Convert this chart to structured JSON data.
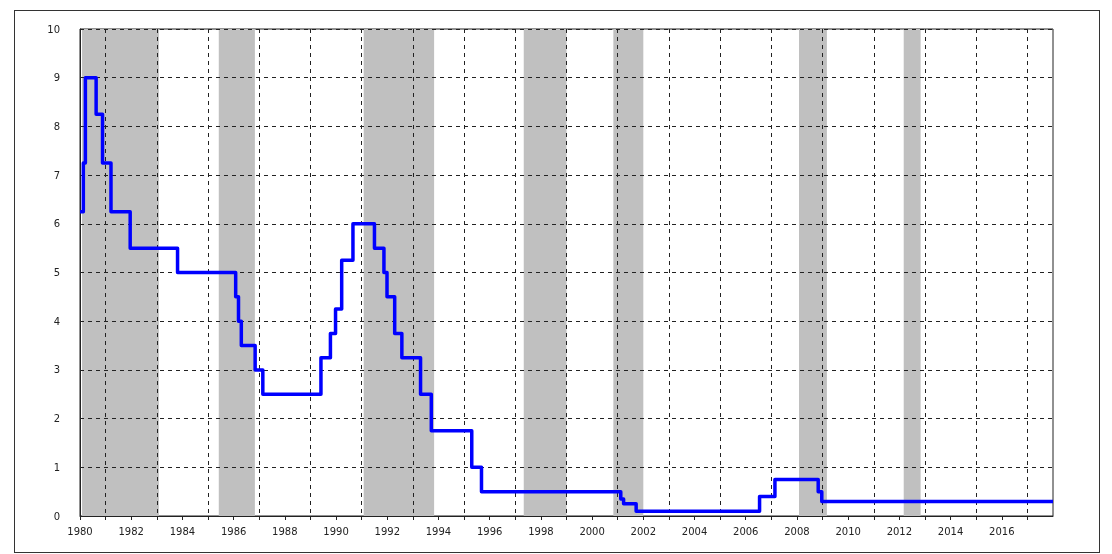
{
  "chart_data": {
    "type": "step",
    "x": [
      1980.0,
      1980.13,
      1980.21,
      1980.63,
      1980.88,
      1981.21,
      1981.96,
      1983.81,
      1986.08,
      1986.19,
      1986.3,
      1986.84,
      1987.14,
      1989.41,
      1989.78,
      1989.98,
      1990.22,
      1990.66,
      1991.5,
      1991.87,
      1991.99,
      1992.29,
      1992.57,
      1993.3,
      1993.72,
      1995.3,
      1995.68,
      2001.12,
      2001.23,
      2001.72,
      2006.54,
      2007.14,
      2008.83,
      2008.97,
      2018.0
    ],
    "series": [
      {
        "color": "#0000ff",
        "values": [
          6.25,
          7.25,
          9.0,
          8.25,
          7.25,
          6.25,
          5.5,
          5.0,
          4.5,
          4.0,
          3.5,
          3.0,
          2.5,
          3.25,
          3.75,
          4.25,
          5.25,
          6.0,
          5.5,
          5.0,
          4.5,
          3.75,
          3.25,
          2.5,
          1.75,
          1.0,
          0.5,
          0.35,
          0.25,
          0.1,
          0.4,
          0.75,
          0.5,
          0.3,
          0.3
        ]
      }
    ],
    "xlim": [
      1980,
      2018
    ],
    "xticks": [
      1980,
      {
        "value": 1981,
        "label": null
      },
      1982,
      {
        "value": 1983,
        "label": null
      },
      1984,
      {
        "value": 1985,
        "label": null
      },
      1986,
      {
        "value": 1987,
        "label": null
      },
      1988,
      {
        "value": 1989,
        "label": null
      },
      1990,
      {
        "value": 1991,
        "label": null
      },
      1992,
      {
        "value": 1993,
        "label": null
      },
      1994,
      {
        "value": 1995,
        "label": null
      },
      1996,
      {
        "value": 1997,
        "label": null
      },
      1998,
      {
        "value": 1999,
        "label": null
      },
      2000,
      {
        "value": 2001,
        "label": null
      },
      2002,
      {
        "value": 2003,
        "label": null
      },
      2004,
      {
        "value": 2005,
        "label": null
      },
      2006,
      {
        "value": 2007,
        "label": null
      },
      2008,
      {
        "value": 2009,
        "label": null
      },
      2010,
      {
        "value": 2011,
        "label": null
      },
      2012,
      {
        "value": 2013,
        "label": null
      },
      2014,
      {
        "value": 2015,
        "label": null
      },
      2016,
      {
        "value": 2017,
        "label": null
      }
    ],
    "ylim": [
      0,
      10
    ],
    "yticks": [
      0,
      1,
      2,
      3,
      4,
      5,
      6,
      7,
      8,
      9,
      10
    ],
    "bands": [
      {
        "axis": "x",
        "from": 1980.08,
        "to": 1983.08,
        "color": "#c0c0c0"
      },
      {
        "axis": "x",
        "from": 1985.42,
        "to": 1986.83,
        "color": "#c0c0c0"
      },
      {
        "axis": "x",
        "from": 1991.08,
        "to": 1993.83,
        "color": "#c0c0c0"
      },
      {
        "axis": "x",
        "from": 1997.33,
        "to": 1999.0,
        "color": "#c0c0c0"
      },
      {
        "axis": "x",
        "from": 2000.83,
        "to": 2002.0,
        "color": "#c0c0c0"
      },
      {
        "axis": "x",
        "from": 2008.08,
        "to": 2009.17,
        "color": "#c0c0c0"
      },
      {
        "axis": "x",
        "from": 2012.17,
        "to": 2012.83,
        "color": "#c0c0c0"
      }
    ],
    "grid": true,
    "marker": "none"
  }
}
